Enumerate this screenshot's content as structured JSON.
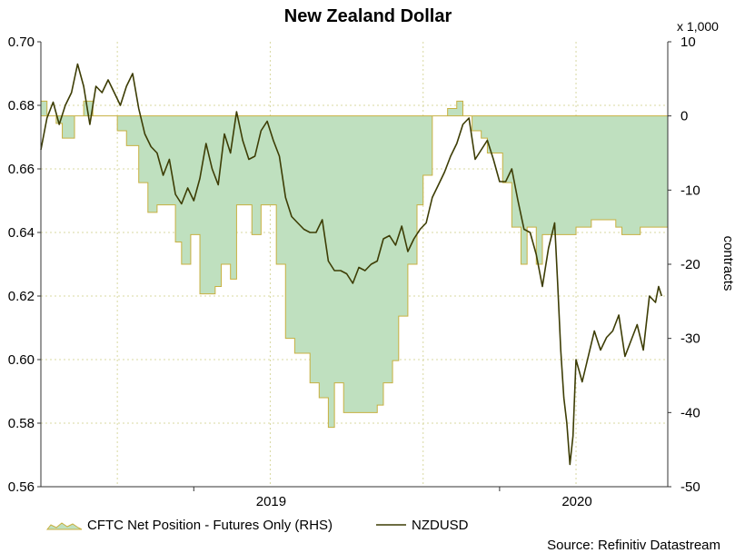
{
  "colors": {
    "area_fill": "#bfe0bf",
    "area_stroke": "#c8b040",
    "line": "#3d3d05",
    "grid": "#d8d8a0",
    "axis": "#333333"
  },
  "chart_data": {
    "type": "line+area",
    "title": "New Zealand Dollar",
    "source": "Source: Refinitiv Datastream",
    "left_axis": {
      "ticks": [
        "0.70",
        "0.68",
        "0.66",
        "0.64",
        "0.62",
        "0.60",
        "0.58",
        "0.56"
      ],
      "ylim": [
        0.56,
        0.7
      ]
    },
    "right_axis": {
      "label": "contracts",
      "scale_note": "x 1,000",
      "ticks": [
        "10",
        "0",
        "-10",
        "-20",
        "-30",
        "-40",
        "-50"
      ],
      "ylim": [
        -50,
        10
      ]
    },
    "x_axis": {
      "ticks": [
        "2019",
        "2020"
      ]
    },
    "x_range": [
      2018.25,
      2020.3
    ],
    "legend": [
      {
        "label": "CFTC Net Position - Futures Only (RHS)",
        "kind": "area"
      },
      {
        "label": "NZDUSD",
        "kind": "line"
      }
    ],
    "series": [
      {
        "name": "CFTC Net Position - Futures Only (RHS)",
        "axis": "right",
        "kind": "step-area",
        "x": [
          2018.25,
          2018.27,
          2018.3,
          2018.32,
          2018.36,
          2018.39,
          2018.42,
          2018.47,
          2018.5,
          2018.53,
          2018.57,
          2018.6,
          2018.63,
          2018.66,
          2018.69,
          2018.71,
          2018.74,
          2018.77,
          2018.79,
          2018.82,
          2018.84,
          2018.87,
          2018.89,
          2018.92,
          2018.94,
          2018.97,
          2018.99,
          2019.02,
          2019.05,
          2019.08,
          2019.11,
          2019.13,
          2019.16,
          2019.19,
          2019.21,
          2019.24,
          2019.27,
          2019.3,
          2019.32,
          2019.35,
          2019.37,
          2019.4,
          2019.42,
          2019.45,
          2019.48,
          2019.5,
          2019.53,
          2019.55,
          2019.58,
          2019.61,
          2019.63,
          2019.66,
          2019.69,
          2019.71,
          2019.74,
          2019.76,
          2019.79,
          2019.82,
          2019.84,
          2019.87,
          2019.89,
          2019.92,
          2019.95,
          2019.97,
          2020.0,
          2020.02,
          2020.05,
          2020.08,
          2020.1,
          2020.13,
          2020.15,
          2020.18,
          2020.21,
          2020.23,
          2020.26,
          2020.28
        ],
        "values": [
          2,
          0,
          -1,
          -3,
          0,
          2,
          0,
          0,
          -2,
          -4,
          -9,
          -13,
          -12,
          -12,
          -17,
          -20,
          -16,
          -24,
          -24,
          -23,
          -20,
          -22,
          -12,
          -12,
          -16,
          -12,
          -12,
          -20,
          -30,
          -32,
          -32,
          -36,
          -38,
          -42,
          -36,
          -40,
          -40,
          -40,
          -40,
          -39,
          -36,
          -33,
          -27,
          -20,
          -12,
          -8,
          0,
          0,
          1,
          2,
          0,
          -2,
          -3,
          -5,
          -5,
          -9,
          -15,
          -20,
          -15,
          -20,
          -16,
          -16,
          -16,
          -16,
          -15,
          -15,
          -14,
          -14,
          -14,
          -15,
          -16,
          -16,
          -15,
          -15,
          -15,
          -15
        ]
      },
      {
        "name": "NZDUSD",
        "axis": "left",
        "kind": "line",
        "x": [
          2018.25,
          2018.27,
          2018.29,
          2018.31,
          2018.33,
          2018.35,
          2018.37,
          2018.39,
          2018.41,
          2018.43,
          2018.45,
          2018.47,
          2018.49,
          2018.51,
          2018.53,
          2018.55,
          2018.57,
          2018.59,
          2018.61,
          2018.63,
          2018.65,
          2018.67,
          2018.69,
          2018.71,
          2018.73,
          2018.75,
          2018.77,
          2018.79,
          2018.81,
          2018.83,
          2018.85,
          2018.87,
          2018.89,
          2018.91,
          2018.93,
          2018.95,
          2018.97,
          2018.99,
          2019.01,
          2019.03,
          2019.05,
          2019.07,
          2019.09,
          2019.11,
          2019.13,
          2019.15,
          2019.17,
          2019.19,
          2019.21,
          2019.23,
          2019.25,
          2019.27,
          2019.29,
          2019.31,
          2019.33,
          2019.35,
          2019.37,
          2019.39,
          2019.41,
          2019.43,
          2019.45,
          2019.47,
          2019.49,
          2019.51,
          2019.53,
          2019.55,
          2019.57,
          2019.59,
          2019.61,
          2019.63,
          2019.65,
          2019.67,
          2019.69,
          2019.71,
          2019.73,
          2019.75,
          2019.77,
          2019.79,
          2019.81,
          2019.83,
          2019.85,
          2019.87,
          2019.89,
          2019.91,
          2019.92,
          2019.93,
          2019.94,
          2019.95,
          2019.96,
          2019.97,
          2019.98,
          2019.99,
          2020.0,
          2020.02,
          2020.04,
          2020.06,
          2020.08,
          2020.1,
          2020.12,
          2020.14,
          2020.16,
          2020.18,
          2020.2,
          2020.22,
          2020.24,
          2020.26,
          2020.27,
          2020.28
        ],
        "values": [
          0.666,
          0.676,
          0.681,
          0.674,
          0.68,
          0.684,
          0.693,
          0.686,
          0.674,
          0.686,
          0.684,
          0.688,
          0.684,
          0.68,
          0.686,
          0.69,
          0.679,
          0.671,
          0.667,
          0.665,
          0.658,
          0.663,
          0.652,
          0.649,
          0.654,
          0.65,
          0.657,
          0.668,
          0.66,
          0.655,
          0.671,
          0.665,
          0.678,
          0.669,
          0.663,
          0.664,
          0.672,
          0.675,
          0.669,
          0.664,
          0.651,
          0.645,
          0.643,
          0.641,
          0.64,
          0.64,
          0.644,
          0.631,
          0.628,
          0.628,
          0.627,
          0.624,
          0.629,
          0.628,
          0.63,
          0.631,
          0.638,
          0.639,
          0.636,
          0.642,
          0.634,
          0.638,
          0.641,
          0.643,
          0.651,
          0.655,
          0.659,
          0.664,
          0.668,
          0.674,
          0.676,
          0.663,
          0.666,
          0.669,
          0.663,
          0.656,
          0.656,
          0.66,
          0.65,
          0.641,
          0.64,
          0.633,
          0.623,
          0.635,
          0.639,
          0.643,
          0.624,
          0.603,
          0.588,
          0.58,
          0.567,
          0.576,
          0.6,
          0.593,
          0.601,
          0.609,
          0.603,
          0.607,
          0.609,
          0.614,
          0.601,
          0.606,
          0.611,
          0.603,
          0.62,
          0.618,
          0.623,
          0.62
        ]
      }
    ]
  }
}
